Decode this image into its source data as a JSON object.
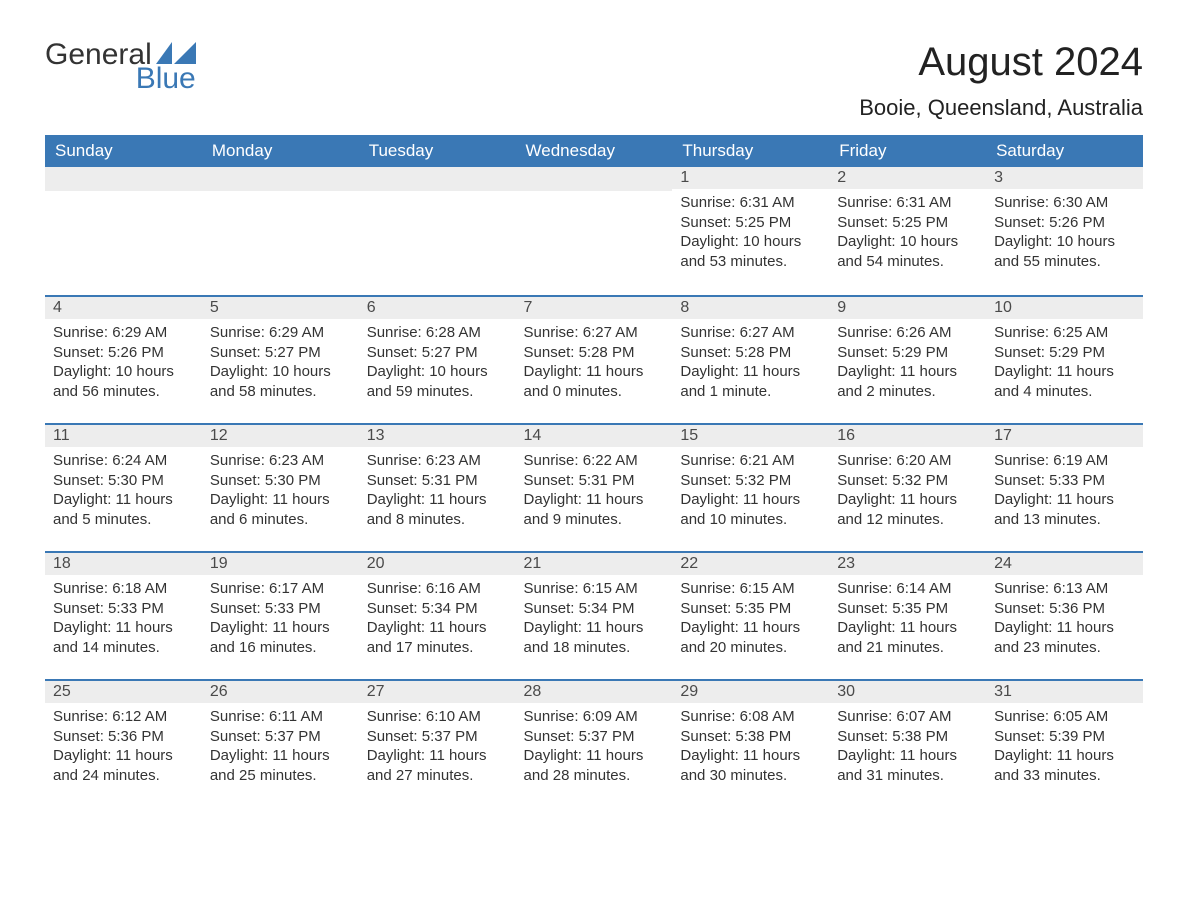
{
  "logo": {
    "text1": "General",
    "text2": "Blue",
    "sail_color": "#3a78b5"
  },
  "title": "August 2024",
  "location": "Booie, Queensland, Australia",
  "colors": {
    "header_bg": "#3a78b5",
    "header_text": "#ffffff",
    "daynum_bg": "#ededed",
    "daynum_text": "#4a4a4a",
    "body_text": "#333333",
    "row_border": "#3a78b5",
    "page_bg": "#ffffff"
  },
  "fonts": {
    "title_size_pt": 30,
    "location_size_pt": 16,
    "header_size_pt": 13,
    "daynum_size_pt": 12,
    "body_size_pt": 11
  },
  "columns": [
    "Sunday",
    "Monday",
    "Tuesday",
    "Wednesday",
    "Thursday",
    "Friday",
    "Saturday"
  ],
  "weeks": [
    [
      null,
      null,
      null,
      null,
      {
        "n": "1",
        "sunrise": "6:31 AM",
        "sunset": "5:25 PM",
        "dl": "10 hours and 53 minutes."
      },
      {
        "n": "2",
        "sunrise": "6:31 AM",
        "sunset": "5:25 PM",
        "dl": "10 hours and 54 minutes."
      },
      {
        "n": "3",
        "sunrise": "6:30 AM",
        "sunset": "5:26 PM",
        "dl": "10 hours and 55 minutes."
      }
    ],
    [
      {
        "n": "4",
        "sunrise": "6:29 AM",
        "sunset": "5:26 PM",
        "dl": "10 hours and 56 minutes."
      },
      {
        "n": "5",
        "sunrise": "6:29 AM",
        "sunset": "5:27 PM",
        "dl": "10 hours and 58 minutes."
      },
      {
        "n": "6",
        "sunrise": "6:28 AM",
        "sunset": "5:27 PM",
        "dl": "10 hours and 59 minutes."
      },
      {
        "n": "7",
        "sunrise": "6:27 AM",
        "sunset": "5:28 PM",
        "dl": "11 hours and 0 minutes."
      },
      {
        "n": "8",
        "sunrise": "6:27 AM",
        "sunset": "5:28 PM",
        "dl": "11 hours and 1 minute."
      },
      {
        "n": "9",
        "sunrise": "6:26 AM",
        "sunset": "5:29 PM",
        "dl": "11 hours and 2 minutes."
      },
      {
        "n": "10",
        "sunrise": "6:25 AM",
        "sunset": "5:29 PM",
        "dl": "11 hours and 4 minutes."
      }
    ],
    [
      {
        "n": "11",
        "sunrise": "6:24 AM",
        "sunset": "5:30 PM",
        "dl": "11 hours and 5 minutes."
      },
      {
        "n": "12",
        "sunrise": "6:23 AM",
        "sunset": "5:30 PM",
        "dl": "11 hours and 6 minutes."
      },
      {
        "n": "13",
        "sunrise": "6:23 AM",
        "sunset": "5:31 PM",
        "dl": "11 hours and 8 minutes."
      },
      {
        "n": "14",
        "sunrise": "6:22 AM",
        "sunset": "5:31 PM",
        "dl": "11 hours and 9 minutes."
      },
      {
        "n": "15",
        "sunrise": "6:21 AM",
        "sunset": "5:32 PM",
        "dl": "11 hours and 10 minutes."
      },
      {
        "n": "16",
        "sunrise": "6:20 AM",
        "sunset": "5:32 PM",
        "dl": "11 hours and 12 minutes."
      },
      {
        "n": "17",
        "sunrise": "6:19 AM",
        "sunset": "5:33 PM",
        "dl": "11 hours and 13 minutes."
      }
    ],
    [
      {
        "n": "18",
        "sunrise": "6:18 AM",
        "sunset": "5:33 PM",
        "dl": "11 hours and 14 minutes."
      },
      {
        "n": "19",
        "sunrise": "6:17 AM",
        "sunset": "5:33 PM",
        "dl": "11 hours and 16 minutes."
      },
      {
        "n": "20",
        "sunrise": "6:16 AM",
        "sunset": "5:34 PM",
        "dl": "11 hours and 17 minutes."
      },
      {
        "n": "21",
        "sunrise": "6:15 AM",
        "sunset": "5:34 PM",
        "dl": "11 hours and 18 minutes."
      },
      {
        "n": "22",
        "sunrise": "6:15 AM",
        "sunset": "5:35 PM",
        "dl": "11 hours and 20 minutes."
      },
      {
        "n": "23",
        "sunrise": "6:14 AM",
        "sunset": "5:35 PM",
        "dl": "11 hours and 21 minutes."
      },
      {
        "n": "24",
        "sunrise": "6:13 AM",
        "sunset": "5:36 PM",
        "dl": "11 hours and 23 minutes."
      }
    ],
    [
      {
        "n": "25",
        "sunrise": "6:12 AM",
        "sunset": "5:36 PM",
        "dl": "11 hours and 24 minutes."
      },
      {
        "n": "26",
        "sunrise": "6:11 AM",
        "sunset": "5:37 PM",
        "dl": "11 hours and 25 minutes."
      },
      {
        "n": "27",
        "sunrise": "6:10 AM",
        "sunset": "5:37 PM",
        "dl": "11 hours and 27 minutes."
      },
      {
        "n": "28",
        "sunrise": "6:09 AM",
        "sunset": "5:37 PM",
        "dl": "11 hours and 28 minutes."
      },
      {
        "n": "29",
        "sunrise": "6:08 AM",
        "sunset": "5:38 PM",
        "dl": "11 hours and 30 minutes."
      },
      {
        "n": "30",
        "sunrise": "6:07 AM",
        "sunset": "5:38 PM",
        "dl": "11 hours and 31 minutes."
      },
      {
        "n": "31",
        "sunrise": "6:05 AM",
        "sunset": "5:39 PM",
        "dl": "11 hours and 33 minutes."
      }
    ]
  ],
  "labels": {
    "sunrise": "Sunrise: ",
    "sunset": "Sunset: ",
    "daylight": "Daylight: "
  }
}
